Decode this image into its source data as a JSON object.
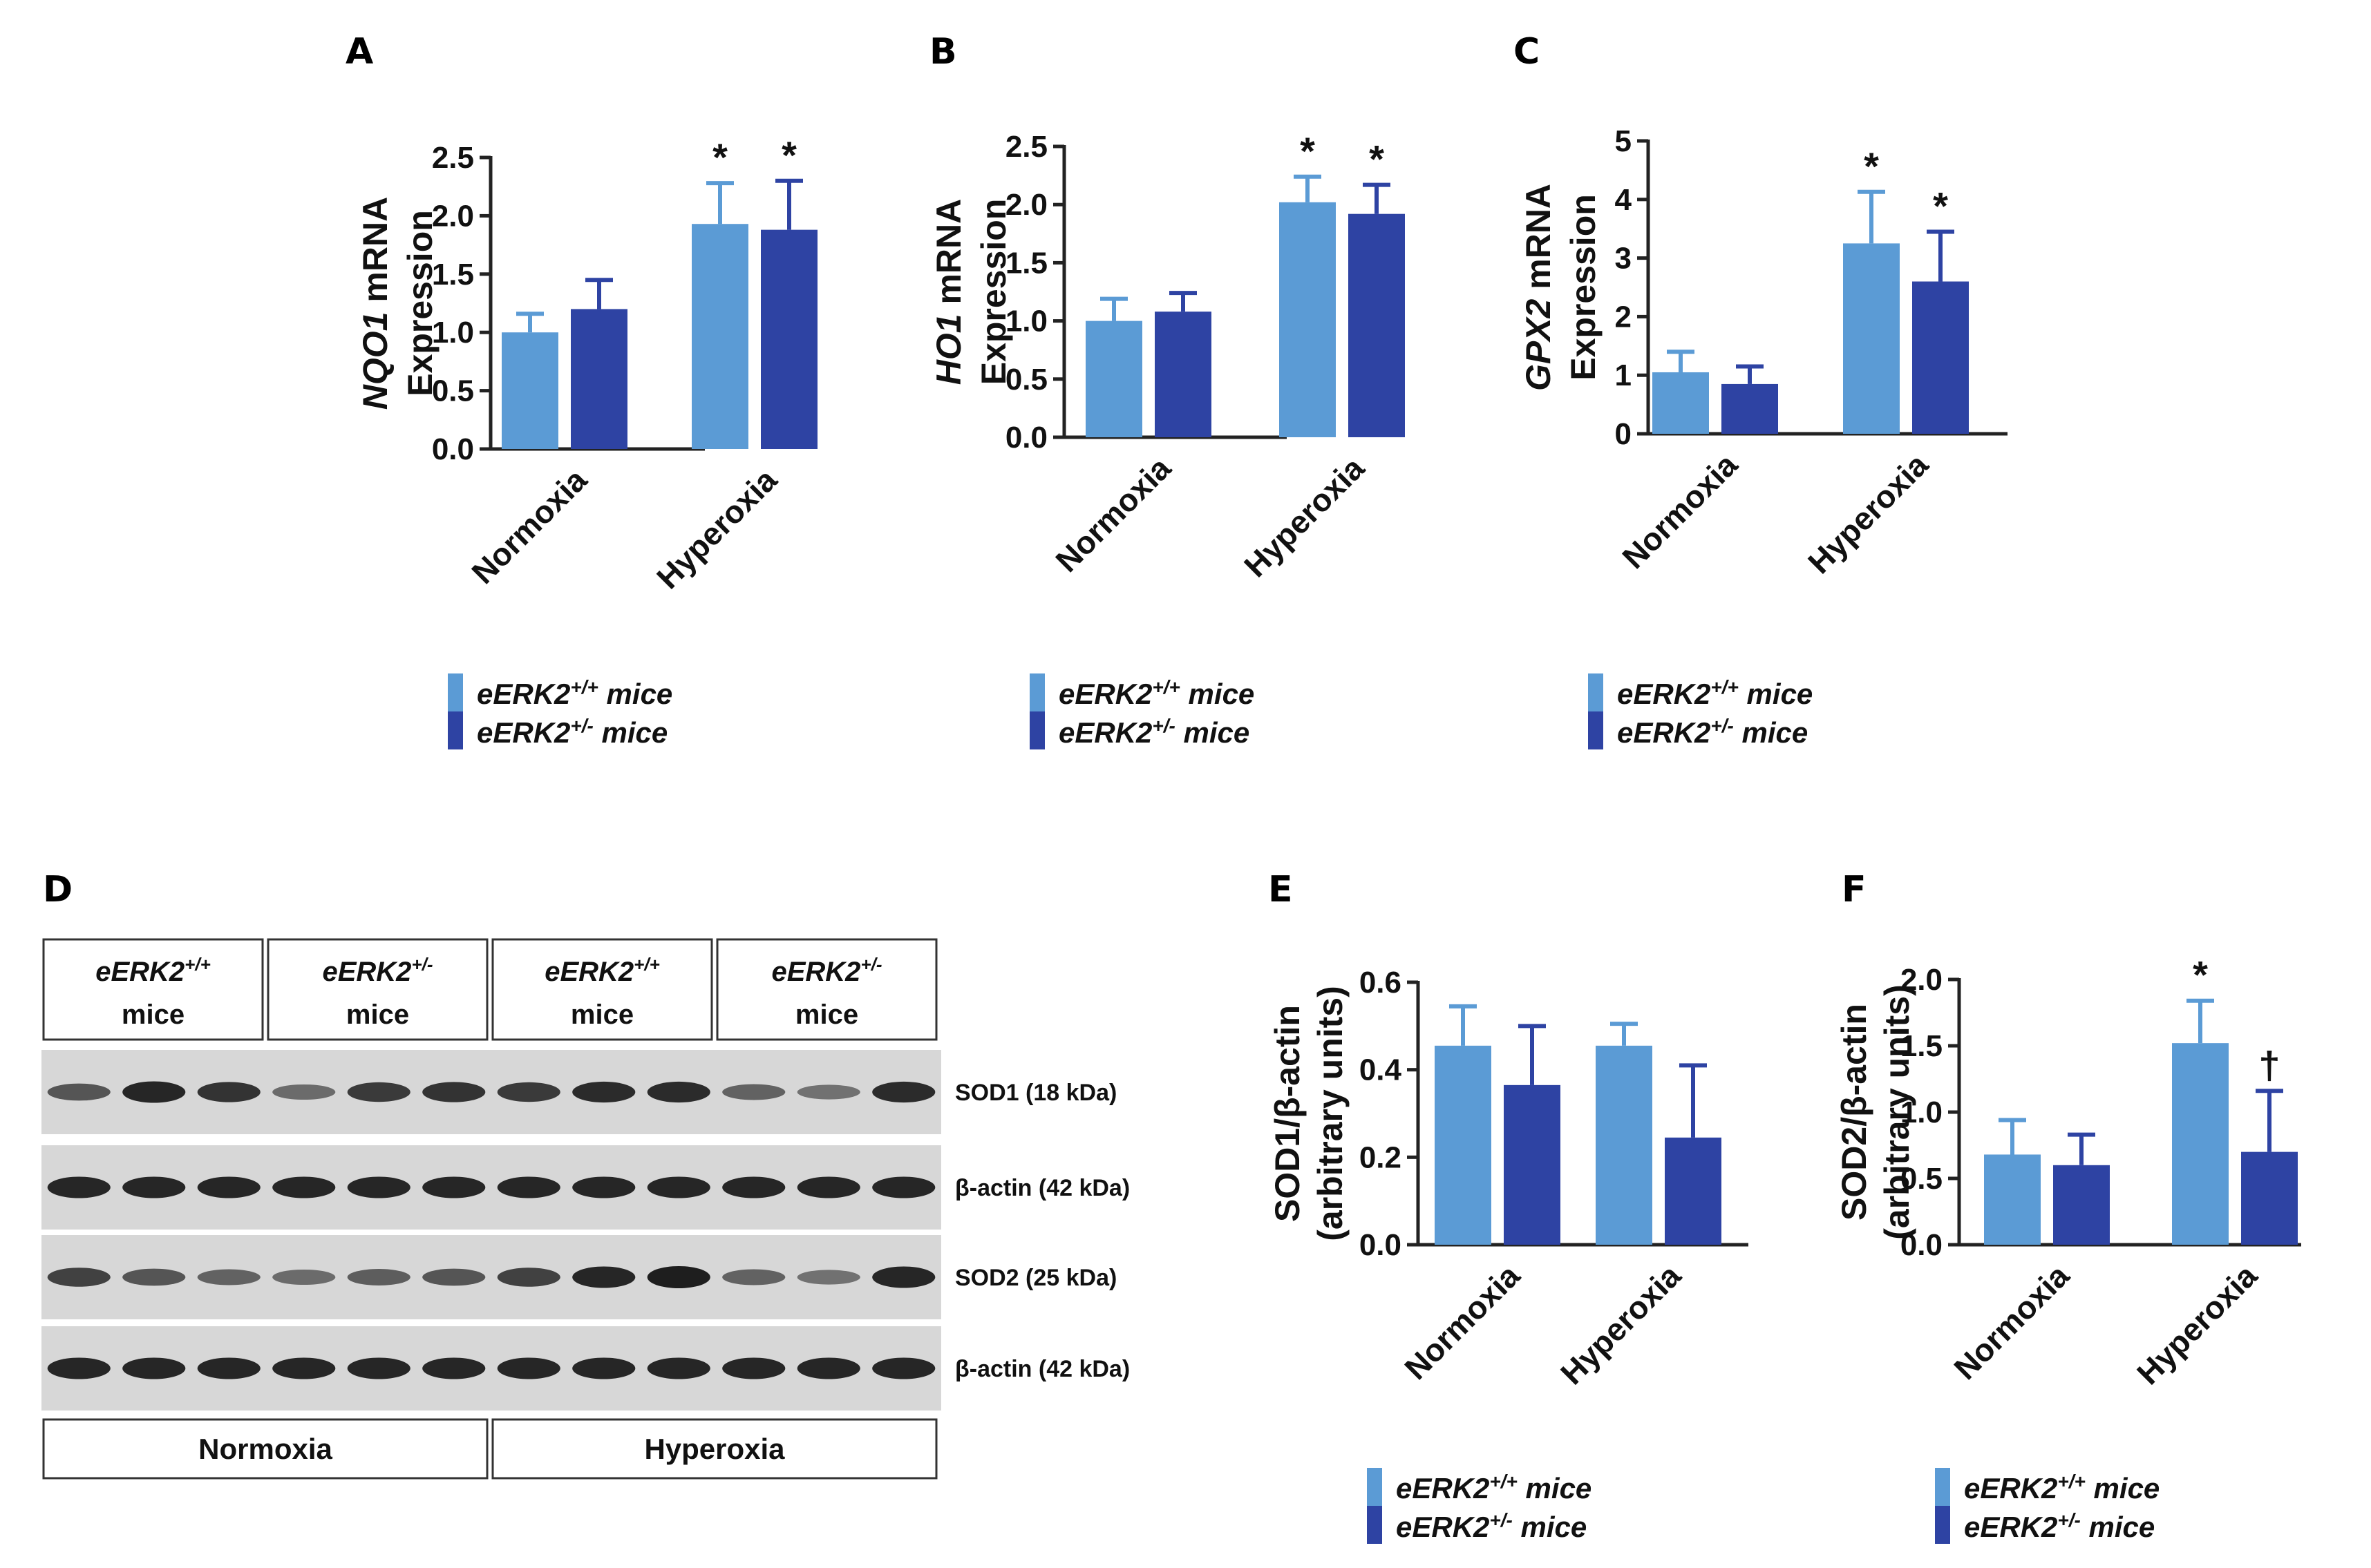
{
  "colors": {
    "wt": "#5b9bd5",
    "het": "#2e43a3",
    "axis": "#222222",
    "blot_bg": "#d7d7d7",
    "band": "#1e1e1e"
  },
  "legend": {
    "wt": "eERK2+/+  mice",
    "het": "eERK2+/-  mice",
    "wt_base": "eERK2",
    "wt_sup": "+/+",
    "het_base": "eERK2",
    "het_sup": "+/-",
    "suffix": "mice"
  },
  "chart_data": [
    {
      "id": "A",
      "panel": "A",
      "type": "bar",
      "categories": [
        "Normoxia",
        "Hyperoxia"
      ],
      "series": [
        {
          "name": "eERK2+/+ mice",
          "values": [
            1.0,
            1.93
          ],
          "errors": [
            0.16,
            0.35
          ]
        },
        {
          "name": "eERK2+/- mice",
          "values": [
            1.2,
            1.88
          ],
          "errors": [
            0.25,
            0.42
          ]
        }
      ],
      "ylabel_gene": "NQO1",
      "ylabel_rest": " mRNA",
      "ylabel2": "Expression",
      "ylim": [
        0,
        2.5
      ],
      "yticks": [
        "0.0",
        "0.5",
        "1.0",
        "1.5",
        "2.0",
        "2.5"
      ],
      "ytick_values": [
        0,
        0.5,
        1.0,
        1.5,
        2.0,
        2.5
      ],
      "significance": [
        [
          "",
          ""
        ],
        [
          "*",
          "*"
        ]
      ]
    },
    {
      "id": "B",
      "panel": "B",
      "type": "bar",
      "categories": [
        "Normoxia",
        "Hyperoxia"
      ],
      "series": [
        {
          "name": "eERK2+/+ mice",
          "values": [
            1.0,
            2.02
          ],
          "errors": [
            0.19,
            0.22
          ]
        },
        {
          "name": "eERK2+/- mice",
          "values": [
            1.08,
            1.92
          ],
          "errors": [
            0.16,
            0.25
          ]
        }
      ],
      "ylabel_gene": "HO1",
      "ylabel_rest": " mRNA",
      "ylabel2": "Expression",
      "ylim": [
        0,
        2.5
      ],
      "yticks": [
        "0.0",
        "0.5",
        "1.0",
        "1.5",
        "2.0",
        "2.5"
      ],
      "ytick_values": [
        0,
        0.5,
        1.0,
        1.5,
        2.0,
        2.5
      ],
      "significance": [
        [
          "",
          ""
        ],
        [
          "*",
          "*"
        ]
      ]
    },
    {
      "id": "C",
      "panel": "C",
      "type": "bar",
      "categories": [
        "Normoxia",
        "Hyperoxia"
      ],
      "series": [
        {
          "name": "eERK2+/+ mice",
          "values": [
            1.05,
            3.25
          ],
          "errors": [
            0.35,
            0.88
          ]
        },
        {
          "name": "eERK2+/- mice",
          "values": [
            0.85,
            2.6
          ],
          "errors": [
            0.3,
            0.85
          ]
        }
      ],
      "ylabel_gene": "GPX2",
      "ylabel_rest": " mRNA",
      "ylabel2": "Expression",
      "ylim": [
        0,
        5
      ],
      "yticks": [
        "0",
        "1",
        "2",
        "3",
        "4",
        "5"
      ],
      "ytick_values": [
        0,
        1,
        2,
        3,
        4,
        5
      ],
      "significance": [
        [
          "",
          ""
        ],
        [
          "*",
          "*"
        ]
      ]
    },
    {
      "id": "E",
      "panel": "E",
      "type": "bar",
      "categories": [
        "Normoxia",
        "Hyperoxia"
      ],
      "series": [
        {
          "name": "eERK2+/+ mice",
          "values": [
            0.455,
            0.455
          ],
          "errors": [
            0.09,
            0.05
          ]
        },
        {
          "name": "eERK2+/- mice",
          "values": [
            0.365,
            0.245
          ],
          "errors": [
            0.135,
            0.165
          ]
        }
      ],
      "ylabel_gene": "",
      "ylabel_rest": "SOD1/β-actin",
      "ylabel2": "(arbitrary units)",
      "ylim": [
        0,
        0.6
      ],
      "yticks": [
        "0.0",
        "0.2",
        "0.4",
        "0.6"
      ],
      "ytick_values": [
        0,
        0.2,
        0.4,
        0.6
      ],
      "significance": [
        [
          "",
          ""
        ],
        [
          "",
          ""
        ]
      ]
    },
    {
      "id": "F",
      "panel": "F",
      "type": "bar",
      "categories": [
        "Normoxia",
        "Hyperoxia"
      ],
      "series": [
        {
          "name": "eERK2+/+ mice",
          "values": [
            0.68,
            1.52
          ],
          "errors": [
            0.26,
            0.32
          ]
        },
        {
          "name": "eERK2+/- mice",
          "values": [
            0.6,
            0.7
          ],
          "errors": [
            0.23,
            0.46
          ]
        }
      ],
      "ylabel_gene": "",
      "ylabel_rest": "SOD2/β-actin",
      "ylabel2": "(arbitrary units)",
      "ylim": [
        0,
        2.0
      ],
      "yticks": [
        "0.0",
        "0.5",
        "1.0",
        "1.5",
        "2.0"
      ],
      "ytick_values": [
        0,
        0.5,
        1.0,
        1.5,
        2.0
      ],
      "significance": [
        [
          "",
          ""
        ],
        [
          "*",
          "†"
        ]
      ]
    }
  ],
  "blot": {
    "panel": "D",
    "groups": [
      {
        "base": "eERK2",
        "sup": "+/+",
        "suffix": "mice"
      },
      {
        "base": "eERK2",
        "sup": "+/-",
        "suffix": "mice"
      },
      {
        "base": "eERK2",
        "sup": "+/+",
        "suffix": "mice"
      },
      {
        "base": "eERK2",
        "sup": "+/-",
        "suffix": "mice"
      }
    ],
    "rows": [
      {
        "label": "SOD1 (18 kDa)",
        "intensity": [
          0.6,
          0.95,
          0.85,
          0.45,
          0.8,
          0.85,
          0.8,
          0.9,
          0.9,
          0.5,
          0.4,
          0.9
        ]
      },
      {
        "label": "β-actin (42 kDa)",
        "intensity": [
          0.95,
          0.95,
          0.95,
          0.95,
          0.95,
          0.95,
          0.95,
          0.95,
          0.95,
          0.95,
          0.95,
          0.95
        ]
      },
      {
        "label": "SOD2 (25 kDa)",
        "intensity": [
          0.75,
          0.6,
          0.5,
          0.45,
          0.55,
          0.6,
          0.75,
          0.95,
          1.0,
          0.5,
          0.4,
          0.95
        ]
      },
      {
        "label": "β-actin (42 kDa)",
        "intensity": [
          0.95,
          0.95,
          0.95,
          0.95,
          0.95,
          0.95,
          0.95,
          0.95,
          0.95,
          0.95,
          0.95,
          0.95
        ]
      }
    ],
    "conditions": [
      "Normoxia",
      "Hyperoxia"
    ]
  }
}
